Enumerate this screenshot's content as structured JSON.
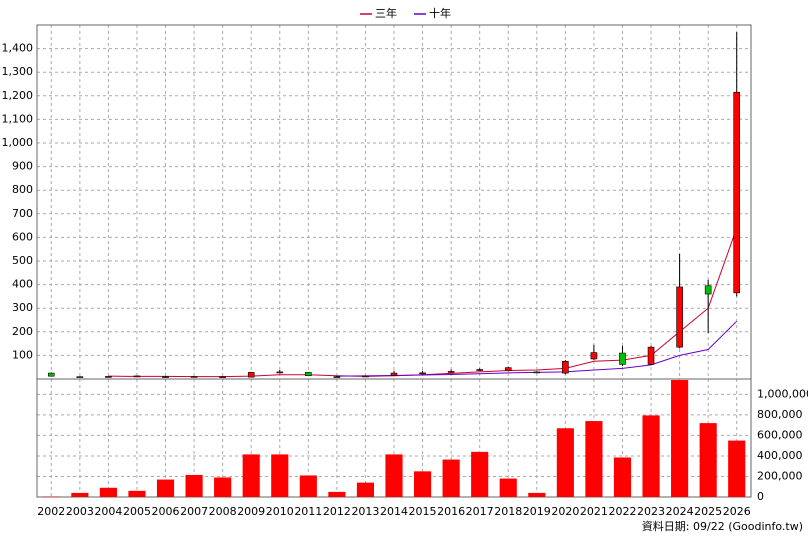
{
  "chart_data": [
    {
      "type": "candlestick",
      "categories": [
        "2002",
        "2003",
        "2004",
        "2005",
        "2006",
        "2007",
        "2008",
        "2009",
        "2010",
        "2011",
        "2012",
        "2013",
        "2014",
        "2015",
        "2016",
        "2017",
        "2018",
        "2019",
        "2020",
        "2021",
        "2022",
        "2023",
        "2024",
        "2025",
        "2026"
      ],
      "open": [
        25,
        10,
        10,
        12,
        10,
        10,
        9,
        8,
        28,
        28,
        10,
        11,
        15,
        22,
        28,
        36,
        35,
        30,
        25,
        85,
        110,
        62,
        135,
        395,
        365
      ],
      "high": [
        28,
        11,
        12,
        14,
        12,
        12,
        11,
        30,
        38,
        30,
        12,
        14,
        35,
        35,
        40,
        45,
        52,
        33,
        80,
        145,
        140,
        140,
        530,
        420,
        1470
      ],
      "low": [
        10,
        8,
        8,
        10,
        8,
        8,
        7,
        7,
        25,
        12,
        8,
        9,
        12,
        20,
        26,
        34,
        32,
        27,
        20,
        80,
        55,
        58,
        130,
        195,
        350
      ],
      "close": [
        12,
        9,
        11,
        13,
        9,
        11,
        10,
        28,
        30,
        14,
        9,
        13,
        25,
        26,
        32,
        40,
        48,
        28,
        75,
        112,
        62,
        135,
        390,
        360,
        1215
      ],
      "up_color": "#ff0000",
      "down_color": "#00c000",
      "series": [
        {
          "name": "三年",
          "color": "#cc0033",
          "values": [
            null,
            null,
            12,
            11,
            11,
            10,
            10,
            12,
            18,
            18,
            14,
            11,
            14,
            18,
            24,
            30,
            36,
            38,
            45,
            75,
            80,
            100,
            200,
            300,
            640
          ]
        },
        {
          "name": "十年",
          "color": "#6600cc",
          "values": [
            null,
            null,
            null,
            null,
            null,
            null,
            null,
            null,
            null,
            null,
            12,
            13,
            15,
            17,
            19,
            22,
            26,
            28,
            30,
            38,
            45,
            60,
            100,
            125,
            245
          ]
        }
      ],
      "ylim": [
        0,
        1500
      ],
      "yticks": [
        100,
        200,
        300,
        400,
        500,
        600,
        700,
        800,
        900,
        {
          "value": 1000,
          "label": "1,000"
        },
        {
          "value": 1100,
          "label": "1,100"
        },
        {
          "value": 1200,
          "label": "1,200"
        },
        {
          "value": 1300,
          "label": "1,300"
        },
        {
          "value": 1400,
          "label": "1,400"
        }
      ],
      "grid": true
    },
    {
      "type": "bar",
      "color": "#ff0000",
      "values": [
        5000,
        40000,
        90000,
        60000,
        170000,
        215000,
        190000,
        415000,
        415000,
        210000,
        50000,
        140000,
        415000,
        250000,
        365000,
        440000,
        180000,
        40000,
        670000,
        740000,
        385000,
        795000,
        1140000,
        720000,
        550000
      ],
      "ylim": [
        0,
        1150000
      ],
      "yticks": [
        0,
        {
          "value": 200000,
          "label": "200,000"
        },
        {
          "value": 400000,
          "label": "400,000"
        },
        {
          "value": 600000,
          "label": "600,000"
        },
        {
          "value": 800000,
          "label": "800,000"
        },
        {
          "value": 1000000,
          "label": "1,000,000"
        }
      ],
      "grid": true
    }
  ],
  "footer": "資料日期: 09/22 (Goodinfo.tw)"
}
